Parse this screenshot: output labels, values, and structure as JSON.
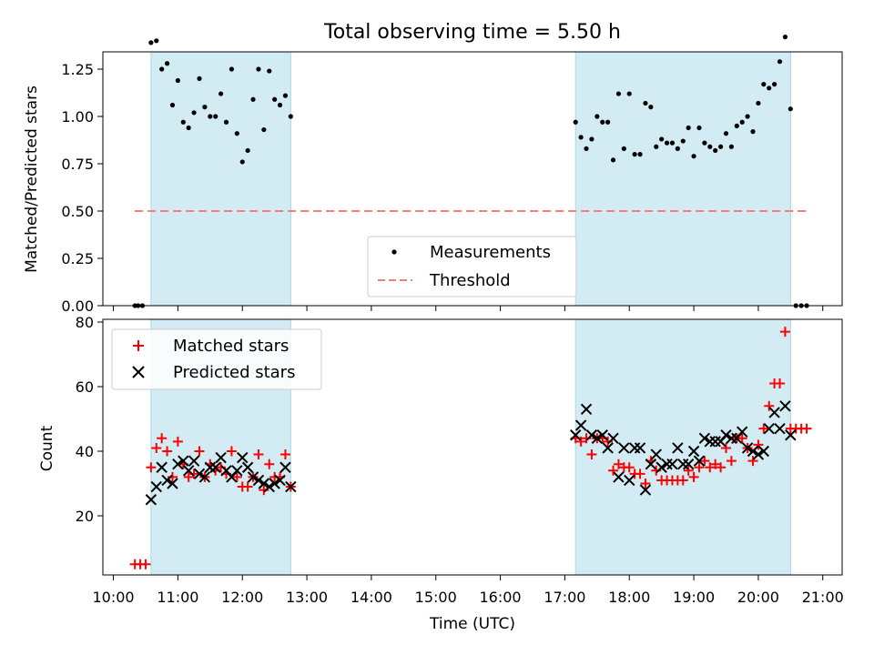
{
  "title": "Total observing time = 5.50 h",
  "colors": {
    "shade": "#a8d8e6",
    "measurement": "#000000",
    "threshold": "#f08080",
    "matched": "#ff0000",
    "predicted": "#000000"
  },
  "chart_data": [
    {
      "type": "scatter",
      "ylabel": "Matched/Predicted stars",
      "xlim": [
        "10:00",
        "21:00"
      ],
      "ylim": [
        0,
        1.5
      ],
      "y_ticks": [
        "0.00",
        "0.25",
        "0.50",
        "0.75",
        "1.00",
        "1.25"
      ],
      "shaded_intervals": [
        [
          "10:35",
          "12:45"
        ],
        [
          "17:10",
          "20:30"
        ]
      ],
      "threshold": {
        "value": 0.5,
        "from": "10:20",
        "to": "20:45"
      },
      "legend": {
        "location": "lower center",
        "entries": [
          "Measurements",
          "Threshold"
        ]
      },
      "series": [
        {
          "name": "Measurements",
          "points": [
            [
              "10:20",
              0.0
            ],
            [
              "10:23",
              0.0
            ],
            [
              "10:27",
              0.0
            ],
            [
              "10:35",
              1.39
            ],
            [
              "10:40",
              1.4
            ],
            [
              "10:45",
              1.25
            ],
            [
              "10:50",
              1.28
            ],
            [
              "10:55",
              1.06
            ],
            [
              "11:00",
              1.19
            ],
            [
              "11:05",
              0.97
            ],
            [
              "11:10",
              0.94
            ],
            [
              "11:15",
              1.02
            ],
            [
              "11:20",
              1.2
            ],
            [
              "11:25",
              1.05
            ],
            [
              "11:30",
              1.0
            ],
            [
              "11:35",
              1.0
            ],
            [
              "11:40",
              1.12
            ],
            [
              "11:45",
              0.97
            ],
            [
              "11:50",
              1.25
            ],
            [
              "11:55",
              0.91
            ],
            [
              "12:00",
              0.76
            ],
            [
              "12:05",
              0.82
            ],
            [
              "12:10",
              1.09
            ],
            [
              "12:15",
              1.25
            ],
            [
              "12:20",
              0.93
            ],
            [
              "12:25",
              1.24
            ],
            [
              "12:30",
              1.09
            ],
            [
              "12:35",
              1.06
            ],
            [
              "12:40",
              1.11
            ],
            [
              "12:45",
              1.0
            ],
            [
              "17:10",
              0.97
            ],
            [
              "17:15",
              0.89
            ],
            [
              "17:20",
              0.83
            ],
            [
              "17:25",
              0.88
            ],
            [
              "17:30",
              1.0
            ],
            [
              "17:35",
              0.97
            ],
            [
              "17:40",
              0.97
            ],
            [
              "17:45",
              0.77
            ],
            [
              "17:50",
              1.12
            ],
            [
              "17:55",
              0.83
            ],
            [
              "18:00",
              1.12
            ],
            [
              "18:05",
              0.8
            ],
            [
              "18:10",
              0.8
            ],
            [
              "18:15",
              1.07
            ],
            [
              "18:20",
              1.05
            ],
            [
              "18:25",
              0.84
            ],
            [
              "18:30",
              0.88
            ],
            [
              "18:35",
              0.86
            ],
            [
              "18:40",
              0.86
            ],
            [
              "18:45",
              0.83
            ],
            [
              "18:50",
              0.87
            ],
            [
              "18:55",
              0.94
            ],
            [
              "19:00",
              0.79
            ],
            [
              "19:05",
              0.94
            ],
            [
              "19:10",
              0.86
            ],
            [
              "19:15",
              0.84
            ],
            [
              "19:20",
              0.82
            ],
            [
              "19:25",
              0.84
            ],
            [
              "19:30",
              0.91
            ],
            [
              "19:35",
              0.84
            ],
            [
              "19:40",
              0.95
            ],
            [
              "19:45",
              0.97
            ],
            [
              "19:50",
              1.0
            ],
            [
              "19:55",
              0.92
            ],
            [
              "20:00",
              1.07
            ],
            [
              "20:05",
              1.17
            ],
            [
              "20:10",
              1.15
            ],
            [
              "20:15",
              1.17
            ],
            [
              "20:20",
              1.29
            ],
            [
              "20:25",
              1.42
            ],
            [
              "20:30",
              1.04
            ],
            [
              "20:35",
              0.0
            ],
            [
              "20:40",
              0.0
            ],
            [
              "20:45",
              0.0
            ]
          ]
        }
      ]
    },
    {
      "type": "scatter",
      "xlabel": "Time (UTC)",
      "ylabel": "Count",
      "xlim": [
        "10:00",
        "21:00"
      ],
      "ylim": [
        2,
        80
      ],
      "x_ticks": [
        "10:00",
        "11:00",
        "12:00",
        "13:00",
        "14:00",
        "15:00",
        "16:00",
        "17:00",
        "18:00",
        "19:00",
        "20:00",
        "21:00"
      ],
      "y_ticks": [
        "20",
        "40",
        "60",
        "80"
      ],
      "shaded_intervals": [
        [
          "10:35",
          "12:45"
        ],
        [
          "17:10",
          "20:30"
        ]
      ],
      "legend": {
        "location": "upper left",
        "entries": [
          "Matched stars",
          "Predicted stars"
        ]
      },
      "series": [
        {
          "name": "Matched stars",
          "marker": "+",
          "points": [
            [
              "10:20",
              5
            ],
            [
              "10:25",
              5
            ],
            [
              "10:30",
              5
            ],
            [
              "10:35",
              35
            ],
            [
              "10:40",
              41
            ],
            [
              "10:45",
              44
            ],
            [
              "10:50",
              40
            ],
            [
              "10:55",
              32
            ],
            [
              "11:00",
              43
            ],
            [
              "11:05",
              36
            ],
            [
              "11:10",
              32
            ],
            [
              "11:15",
              33
            ],
            [
              "11:20",
              40
            ],
            [
              "11:25",
              32
            ],
            [
              "11:30",
              36
            ],
            [
              "11:35",
              34
            ],
            [
              "11:40",
              35
            ],
            [
              "11:45",
              33
            ],
            [
              "11:50",
              40
            ],
            [
              "11:55",
              32
            ],
            [
              "12:00",
              29
            ],
            [
              "12:05",
              29
            ],
            [
              "12:10",
              32
            ],
            [
              "12:15",
              39
            ],
            [
              "12:20",
              28
            ],
            [
              "12:25",
              36
            ],
            [
              "12:30",
              32
            ],
            [
              "12:35",
              32
            ],
            [
              "12:40",
              39
            ],
            [
              "12:45",
              29
            ],
            [
              "17:10",
              44
            ],
            [
              "17:15",
              43
            ],
            [
              "17:20",
              44
            ],
            [
              "17:25",
              39
            ],
            [
              "17:30",
              44
            ],
            [
              "17:35",
              44
            ],
            [
              "17:40",
              43
            ],
            [
              "17:45",
              34
            ],
            [
              "17:50",
              36
            ],
            [
              "17:55",
              35
            ],
            [
              "18:00",
              35
            ],
            [
              "18:05",
              33
            ],
            [
              "18:10",
              33
            ],
            [
              "18:15",
              30
            ],
            [
              "18:20",
              37
            ],
            [
              "18:25",
              34
            ],
            [
              "18:30",
              31
            ],
            [
              "18:35",
              31
            ],
            [
              "18:40",
              31
            ],
            [
              "18:45",
              31
            ],
            [
              "18:50",
              31
            ],
            [
              "18:55",
              34
            ],
            [
              "19:00",
              32
            ],
            [
              "19:05",
              35
            ],
            [
              "19:10",
              37
            ],
            [
              "19:15",
              35
            ],
            [
              "19:20",
              36
            ],
            [
              "19:25",
              35
            ],
            [
              "19:30",
              41
            ],
            [
              "19:35",
              37
            ],
            [
              "19:40",
              44
            ],
            [
              "19:45",
              44
            ],
            [
              "19:50",
              41
            ],
            [
              "19:55",
              37
            ],
            [
              "20:00",
              42
            ],
            [
              "20:05",
              47
            ],
            [
              "20:10",
              54
            ],
            [
              "20:15",
              61
            ],
            [
              "20:20",
              61
            ],
            [
              "20:25",
              77
            ],
            [
              "20:30",
              47
            ],
            [
              "20:35",
              47
            ],
            [
              "20:40",
              47
            ],
            [
              "20:45",
              47
            ]
          ]
        },
        {
          "name": "Predicted stars",
          "marker": "x",
          "points": [
            [
              "10:35",
              25
            ],
            [
              "10:40",
              29
            ],
            [
              "10:45",
              35
            ],
            [
              "10:50",
              31
            ],
            [
              "10:55",
              30
            ],
            [
              "11:00",
              36
            ],
            [
              "11:05",
              37
            ],
            [
              "11:10",
              34
            ],
            [
              "11:15",
              37
            ],
            [
              "11:20",
              33
            ],
            [
              "11:25",
              32
            ],
            [
              "11:30",
              35
            ],
            [
              "11:35",
              35
            ],
            [
              "11:40",
              38
            ],
            [
              "11:45",
              34
            ],
            [
              "11:50",
              32
            ],
            [
              "11:55",
              34
            ],
            [
              "12:00",
              38
            ],
            [
              "12:05",
              35
            ],
            [
              "12:10",
              32
            ],
            [
              "12:15",
              31
            ],
            [
              "12:20",
              30
            ],
            [
              "12:25",
              29
            ],
            [
              "12:30",
              30
            ],
            [
              "12:35",
              31
            ],
            [
              "12:40",
              35
            ],
            [
              "12:45",
              29
            ],
            [
              "17:10",
              45
            ],
            [
              "17:15",
              48
            ],
            [
              "17:20",
              53
            ],
            [
              "17:25",
              45
            ],
            [
              "17:30",
              44
            ],
            [
              "17:35",
              45
            ],
            [
              "17:40",
              41
            ],
            [
              "17:45",
              44
            ],
            [
              "17:50",
              32
            ],
            [
              "17:55",
              41
            ],
            [
              "18:00",
              31
            ],
            [
              "18:05",
              41
            ],
            [
              "18:10",
              41
            ],
            [
              "18:15",
              28
            ],
            [
              "18:20",
              36
            ],
            [
              "18:25",
              39
            ],
            [
              "18:30",
              35
            ],
            [
              "18:35",
              36
            ],
            [
              "18:40",
              36
            ],
            [
              "18:45",
              41
            ],
            [
              "18:50",
              36
            ],
            [
              "18:55",
              36
            ],
            [
              "19:00",
              40
            ],
            [
              "19:05",
              37
            ],
            [
              "19:10",
              44
            ],
            [
              "19:15",
              43
            ],
            [
              "19:20",
              43
            ],
            [
              "19:25",
              43
            ],
            [
              "19:30",
              45
            ],
            [
              "19:35",
              44
            ],
            [
              "19:40",
              44
            ],
            [
              "19:45",
              46
            ],
            [
              "19:50",
              41
            ],
            [
              "19:55",
              40
            ],
            [
              "20:00",
              39
            ],
            [
              "20:05",
              40
            ],
            [
              "20:10",
              47
            ],
            [
              "20:15",
              52
            ],
            [
              "20:20",
              47
            ],
            [
              "20:25",
              54
            ],
            [
              "20:30",
              45
            ]
          ]
        }
      ]
    }
  ]
}
